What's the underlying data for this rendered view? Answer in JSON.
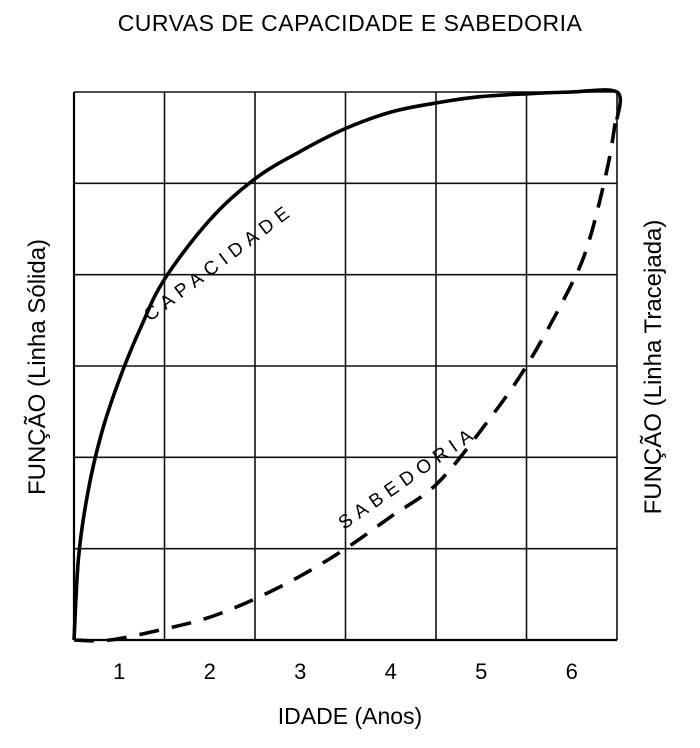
{
  "chart_data": {
    "type": "line",
    "title": "CURVAS DE CAPACIDADE E SABEDORIA",
    "xlabel": "IDADE (Anos)",
    "ylabel_left": "FUNÇÃO (Linha Sólida)",
    "ylabel_right": "FUNÇÃO (Linha Tracejada)",
    "x_ticks": [
      "1",
      "2",
      "3",
      "4",
      "5",
      "6"
    ],
    "xlim": [
      0.5,
      6.5
    ],
    "ylim": [
      0,
      6
    ],
    "grid": true,
    "series": [
      {
        "name": "CAPACIDADE",
        "style": "solid",
        "x": [
          0.5,
          0.55,
          0.65,
          0.8,
          1.0,
          1.25,
          1.5,
          2.0,
          2.5,
          3.0,
          3.5,
          4.0,
          4.5,
          5.0,
          5.5,
          6.0,
          6.5,
          6.5
        ],
        "y": [
          0.0,
          0.9,
          1.6,
          2.25,
          2.85,
          3.45,
          3.95,
          4.6,
          5.05,
          5.35,
          5.6,
          5.78,
          5.88,
          5.95,
          5.98,
          6.0,
          6.0,
          5.7
        ]
      },
      {
        "name": "SABEDORIA",
        "style": "dashed",
        "x": [
          0.5,
          0.9,
          1.5,
          2.0,
          2.5,
          3.0,
          3.5,
          4.0,
          4.5,
          5.0,
          5.5,
          6.0,
          6.2,
          6.4,
          6.5
        ],
        "y": [
          0.0,
          0.0,
          0.12,
          0.25,
          0.45,
          0.7,
          1.0,
          1.35,
          1.7,
          2.3,
          3.0,
          3.9,
          4.4,
          5.2,
          5.8
        ]
      }
    ]
  },
  "colors": {
    "line": "#000000",
    "grid": "#111111",
    "background": "#ffffff"
  }
}
